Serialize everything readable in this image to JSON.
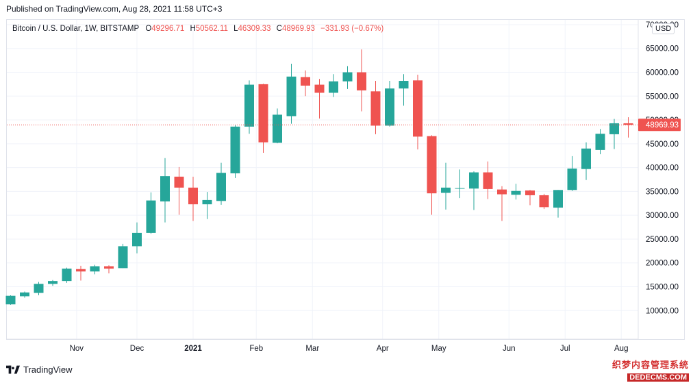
{
  "header": {
    "published": "Published on TradingView.com, Aug 28, 2021 11:58 UTC+3"
  },
  "legend": {
    "symbol": "Bitcoin / U.S. Dollar, 1W, BITSTAMP",
    "open_label": "O",
    "open": "49296.71",
    "high_label": "H",
    "high": "50562.11",
    "low_label": "L",
    "low": "46309.33",
    "close_label": "C",
    "close": "48969.93",
    "change": "−331.93 (−0.67%)"
  },
  "currency_badge": "USD",
  "last_price_label": "48969.93",
  "footer": {
    "brand": "TradingView"
  },
  "watermark": {
    "cn": "织梦内容管理系统",
    "url": "DEDECMS.COM"
  },
  "colors": {
    "up": "#26a69a",
    "down": "#ef5350",
    "grid": "#f0f3fa",
    "text": "#131722",
    "last_price": "#ef5350"
  },
  "chart_data": {
    "type": "candlestick",
    "title": "Bitcoin / U.S. Dollar, 1W, BITSTAMP",
    "ylim": [
      4000,
      71000
    ],
    "y_ticks": [
      10000,
      15000,
      20000,
      25000,
      30000,
      35000,
      40000,
      45000,
      50000,
      55000,
      60000,
      65000,
      70000
    ],
    "y_tick_labels": [
      "10000.00",
      "15000.00",
      "20000.00",
      "25000.00",
      "30000.00",
      "35000.00",
      "40000.00",
      "45000.00",
      "50000.00",
      "55000.00",
      "60000.00",
      "65000.00",
      "70000.00"
    ],
    "x_tick_labels": [
      {
        "label": "Nov",
        "index": 4.7
      },
      {
        "label": "Dec",
        "index": 9
      },
      {
        "label": "2021",
        "index": 13
      },
      {
        "label": "Feb",
        "index": 17.5
      },
      {
        "label": "Mar",
        "index": 21.5
      },
      {
        "label": "Apr",
        "index": 26.5
      },
      {
        "label": "May",
        "index": 30.5
      },
      {
        "label": "Jun",
        "index": 35.5
      },
      {
        "label": "Jul",
        "index": 39.5
      },
      {
        "label": "Aug",
        "index": 43.5
      }
    ],
    "last_price": 48969.93,
    "candles": [
      {
        "o": 11300,
        "h": 13200,
        "l": 11200,
        "c": 13100
      },
      {
        "o": 13000,
        "h": 14000,
        "l": 12700,
        "c": 13800
      },
      {
        "o": 13700,
        "h": 16000,
        "l": 13200,
        "c": 15600
      },
      {
        "o": 15600,
        "h": 16400,
        "l": 15200,
        "c": 16200
      },
      {
        "o": 16200,
        "h": 19000,
        "l": 15800,
        "c": 18800
      },
      {
        "o": 18700,
        "h": 19400,
        "l": 16300,
        "c": 18200
      },
      {
        "o": 18200,
        "h": 19600,
        "l": 17600,
        "c": 19300
      },
      {
        "o": 19300,
        "h": 19500,
        "l": 17800,
        "c": 18800
      },
      {
        "o": 18900,
        "h": 24000,
        "l": 18900,
        "c": 23500
      },
      {
        "o": 23500,
        "h": 28500,
        "l": 22000,
        "c": 26300
      },
      {
        "o": 26300,
        "h": 34800,
        "l": 26100,
        "c": 33100
      },
      {
        "o": 32900,
        "h": 42000,
        "l": 28500,
        "c": 38200
      },
      {
        "o": 38100,
        "h": 40100,
        "l": 30100,
        "c": 35800
      },
      {
        "o": 35800,
        "h": 38100,
        "l": 28800,
        "c": 32300
      },
      {
        "o": 32300,
        "h": 34900,
        "l": 29200,
        "c": 33200
      },
      {
        "o": 33000,
        "h": 41000,
        "l": 32200,
        "c": 38900
      },
      {
        "o": 38800,
        "h": 48900,
        "l": 37800,
        "c": 48600
      },
      {
        "o": 48600,
        "h": 58300,
        "l": 47100,
        "c": 57400
      },
      {
        "o": 57500,
        "h": 57600,
        "l": 43100,
        "c": 45300
      },
      {
        "o": 45200,
        "h": 52400,
        "l": 45100,
        "c": 51100
      },
      {
        "o": 50800,
        "h": 61800,
        "l": 49200,
        "c": 59100
      },
      {
        "o": 59000,
        "h": 60400,
        "l": 55000,
        "c": 57200
      },
      {
        "o": 57400,
        "h": 58600,
        "l": 50300,
        "c": 55700
      },
      {
        "o": 55700,
        "h": 59600,
        "l": 54800,
        "c": 58100
      },
      {
        "o": 58100,
        "h": 61300,
        "l": 56500,
        "c": 60000
      },
      {
        "o": 60000,
        "h": 64800,
        "l": 51800,
        "c": 56200
      },
      {
        "o": 56000,
        "h": 58200,
        "l": 47000,
        "c": 48800
      },
      {
        "o": 48800,
        "h": 58200,
        "l": 48600,
        "c": 56600
      },
      {
        "o": 56600,
        "h": 59600,
        "l": 53000,
        "c": 58200
      },
      {
        "o": 58300,
        "h": 59500,
        "l": 43800,
        "c": 46500
      },
      {
        "o": 46600,
        "h": 46800,
        "l": 30100,
        "c": 34600
      },
      {
        "o": 34700,
        "h": 41000,
        "l": 31200,
        "c": 35800
      },
      {
        "o": 35600,
        "h": 39600,
        "l": 33600,
        "c": 35700
      },
      {
        "o": 35600,
        "h": 39200,
        "l": 31100,
        "c": 39000
      },
      {
        "o": 39000,
        "h": 41300,
        "l": 33400,
        "c": 35500
      },
      {
        "o": 35400,
        "h": 36100,
        "l": 28800,
        "c": 34400
      },
      {
        "o": 34300,
        "h": 36600,
        "l": 33300,
        "c": 35100
      },
      {
        "o": 35200,
        "h": 35300,
        "l": 32100,
        "c": 34200
      },
      {
        "o": 34200,
        "h": 34500,
        "l": 31300,
        "c": 31700
      },
      {
        "o": 31600,
        "h": 35300,
        "l": 29500,
        "c": 35300
      },
      {
        "o": 35300,
        "h": 42400,
        "l": 35100,
        "c": 39800
      },
      {
        "o": 39700,
        "h": 45300,
        "l": 37400,
        "c": 44000
      },
      {
        "o": 43700,
        "h": 48100,
        "l": 42800,
        "c": 47100
      },
      {
        "o": 47000,
        "h": 50200,
        "l": 43900,
        "c": 49300
      },
      {
        "o": 49296.71,
        "h": 50562.11,
        "l": 46309.33,
        "c": 48969.93
      }
    ]
  }
}
